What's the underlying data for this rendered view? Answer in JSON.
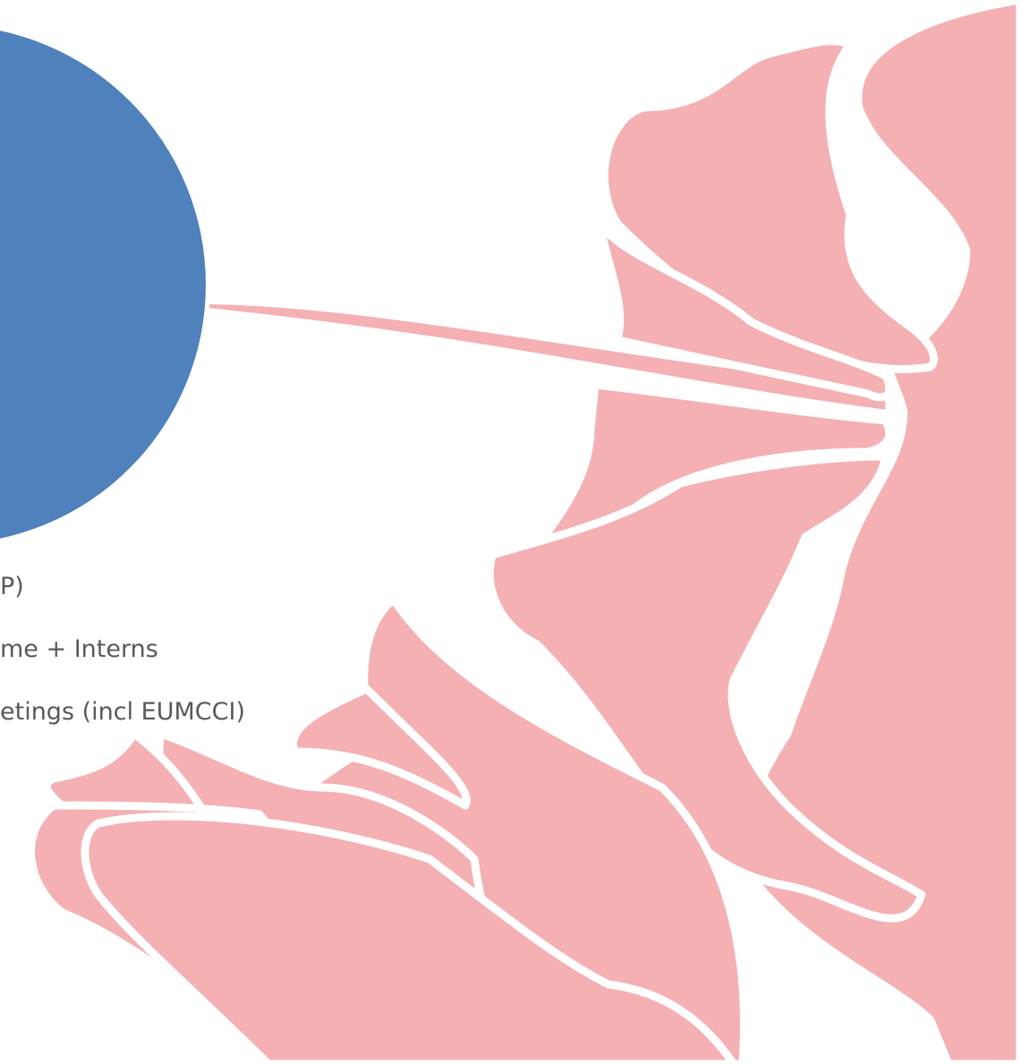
{
  "slide": {
    "bullets": [
      "P)",
      "me + Interns",
      "etings (incl EUMCCI)"
    ]
  }
}
